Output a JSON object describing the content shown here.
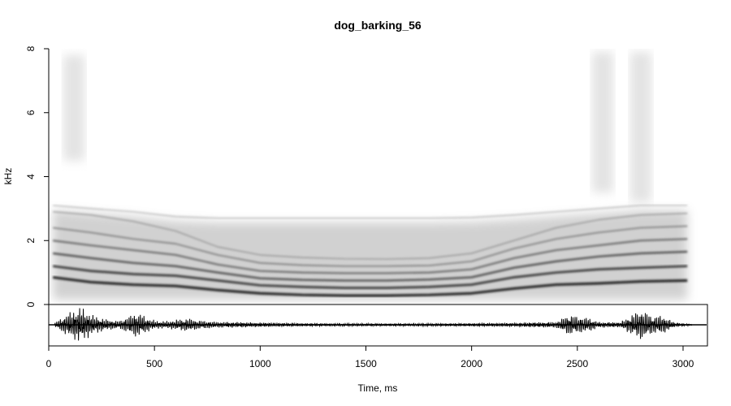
{
  "chart_data": {
    "type": "heatmap",
    "subtype": "spectrogram with oscillogram",
    "title": "dog_barking_56",
    "xlabel": "Time, ms",
    "ylabel": "kHz",
    "xlim": [
      0,
      3050
    ],
    "ylim": [
      0,
      8
    ],
    "x_ticks": [
      "0",
      "500",
      "1000",
      "1500",
      "2000",
      "2500",
      "3000"
    ],
    "y_ticks": [
      "0",
      "2",
      "4",
      "6",
      "8"
    ],
    "colormap": "grayscale (white = low energy, black = high energy)",
    "harmonic_contours": {
      "x": [
        20,
        200,
        400,
        600,
        800,
        1000,
        1200,
        1400,
        1600,
        1800,
        2000,
        2200,
        2400,
        2600,
        2800,
        3020
      ],
      "series": [
        {
          "values": [
            0.85,
            0.7,
            0.62,
            0.58,
            0.45,
            0.35,
            0.3,
            0.28,
            0.28,
            0.3,
            0.35,
            0.5,
            0.62,
            0.66,
            0.72,
            0.75
          ]
        },
        {
          "values": [
            1.2,
            1.05,
            0.95,
            0.9,
            0.75,
            0.6,
            0.55,
            0.52,
            0.52,
            0.55,
            0.62,
            0.85,
            1.0,
            1.1,
            1.15,
            1.2
          ]
        },
        {
          "values": [
            1.6,
            1.45,
            1.3,
            1.2,
            1.0,
            0.82,
            0.77,
            0.75,
            0.75,
            0.78,
            0.85,
            1.15,
            1.35,
            1.5,
            1.6,
            1.65
          ]
        },
        {
          "values": [
            2.0,
            1.85,
            1.7,
            1.55,
            1.25,
            1.05,
            1.0,
            0.98,
            0.98,
            1.0,
            1.1,
            1.45,
            1.7,
            1.85,
            2.0,
            2.05
          ]
        },
        {
          "values": [
            2.4,
            2.25,
            2.05,
            1.9,
            1.55,
            1.3,
            1.23,
            1.2,
            1.2,
            1.22,
            1.35,
            1.75,
            2.05,
            2.25,
            2.4,
            2.45
          ]
        },
        {
          "values": [
            2.9,
            2.8,
            2.6,
            2.3,
            1.8,
            1.55,
            1.47,
            1.43,
            1.42,
            1.45,
            1.6,
            2.0,
            2.4,
            2.65,
            2.8,
            2.85
          ]
        },
        {
          "values": [
            3.1,
            3.0,
            2.9,
            2.75,
            2.7,
            2.7,
            2.7,
            2.7,
            2.7,
            2.7,
            2.72,
            2.8,
            2.9,
            3.0,
            3.1,
            3.1
          ]
        }
      ]
    },
    "oscillogram": {
      "envelope": {
        "x": [
          30,
          90,
          150,
          210,
          270,
          330,
          380,
          410,
          440,
          480,
          520,
          560,
          620,
          660,
          700,
          800,
          900,
          1000,
          1200,
          1400,
          1600,
          1800,
          2000,
          2200,
          2400,
          2460,
          2500,
          2560,
          2600,
          2700,
          2760,
          2800,
          2860,
          2900,
          2960,
          3020
        ],
        "values": [
          0.12,
          0.6,
          0.95,
          0.5,
          0.3,
          0.2,
          0.45,
          0.65,
          0.55,
          0.3,
          0.2,
          0.2,
          0.3,
          0.35,
          0.25,
          0.15,
          0.14,
          0.12,
          0.08,
          0.07,
          0.07,
          0.07,
          0.08,
          0.1,
          0.15,
          0.55,
          0.45,
          0.35,
          0.15,
          0.12,
          0.55,
          0.8,
          0.45,
          0.5,
          0.12,
          0.05
        ]
      }
    }
  }
}
